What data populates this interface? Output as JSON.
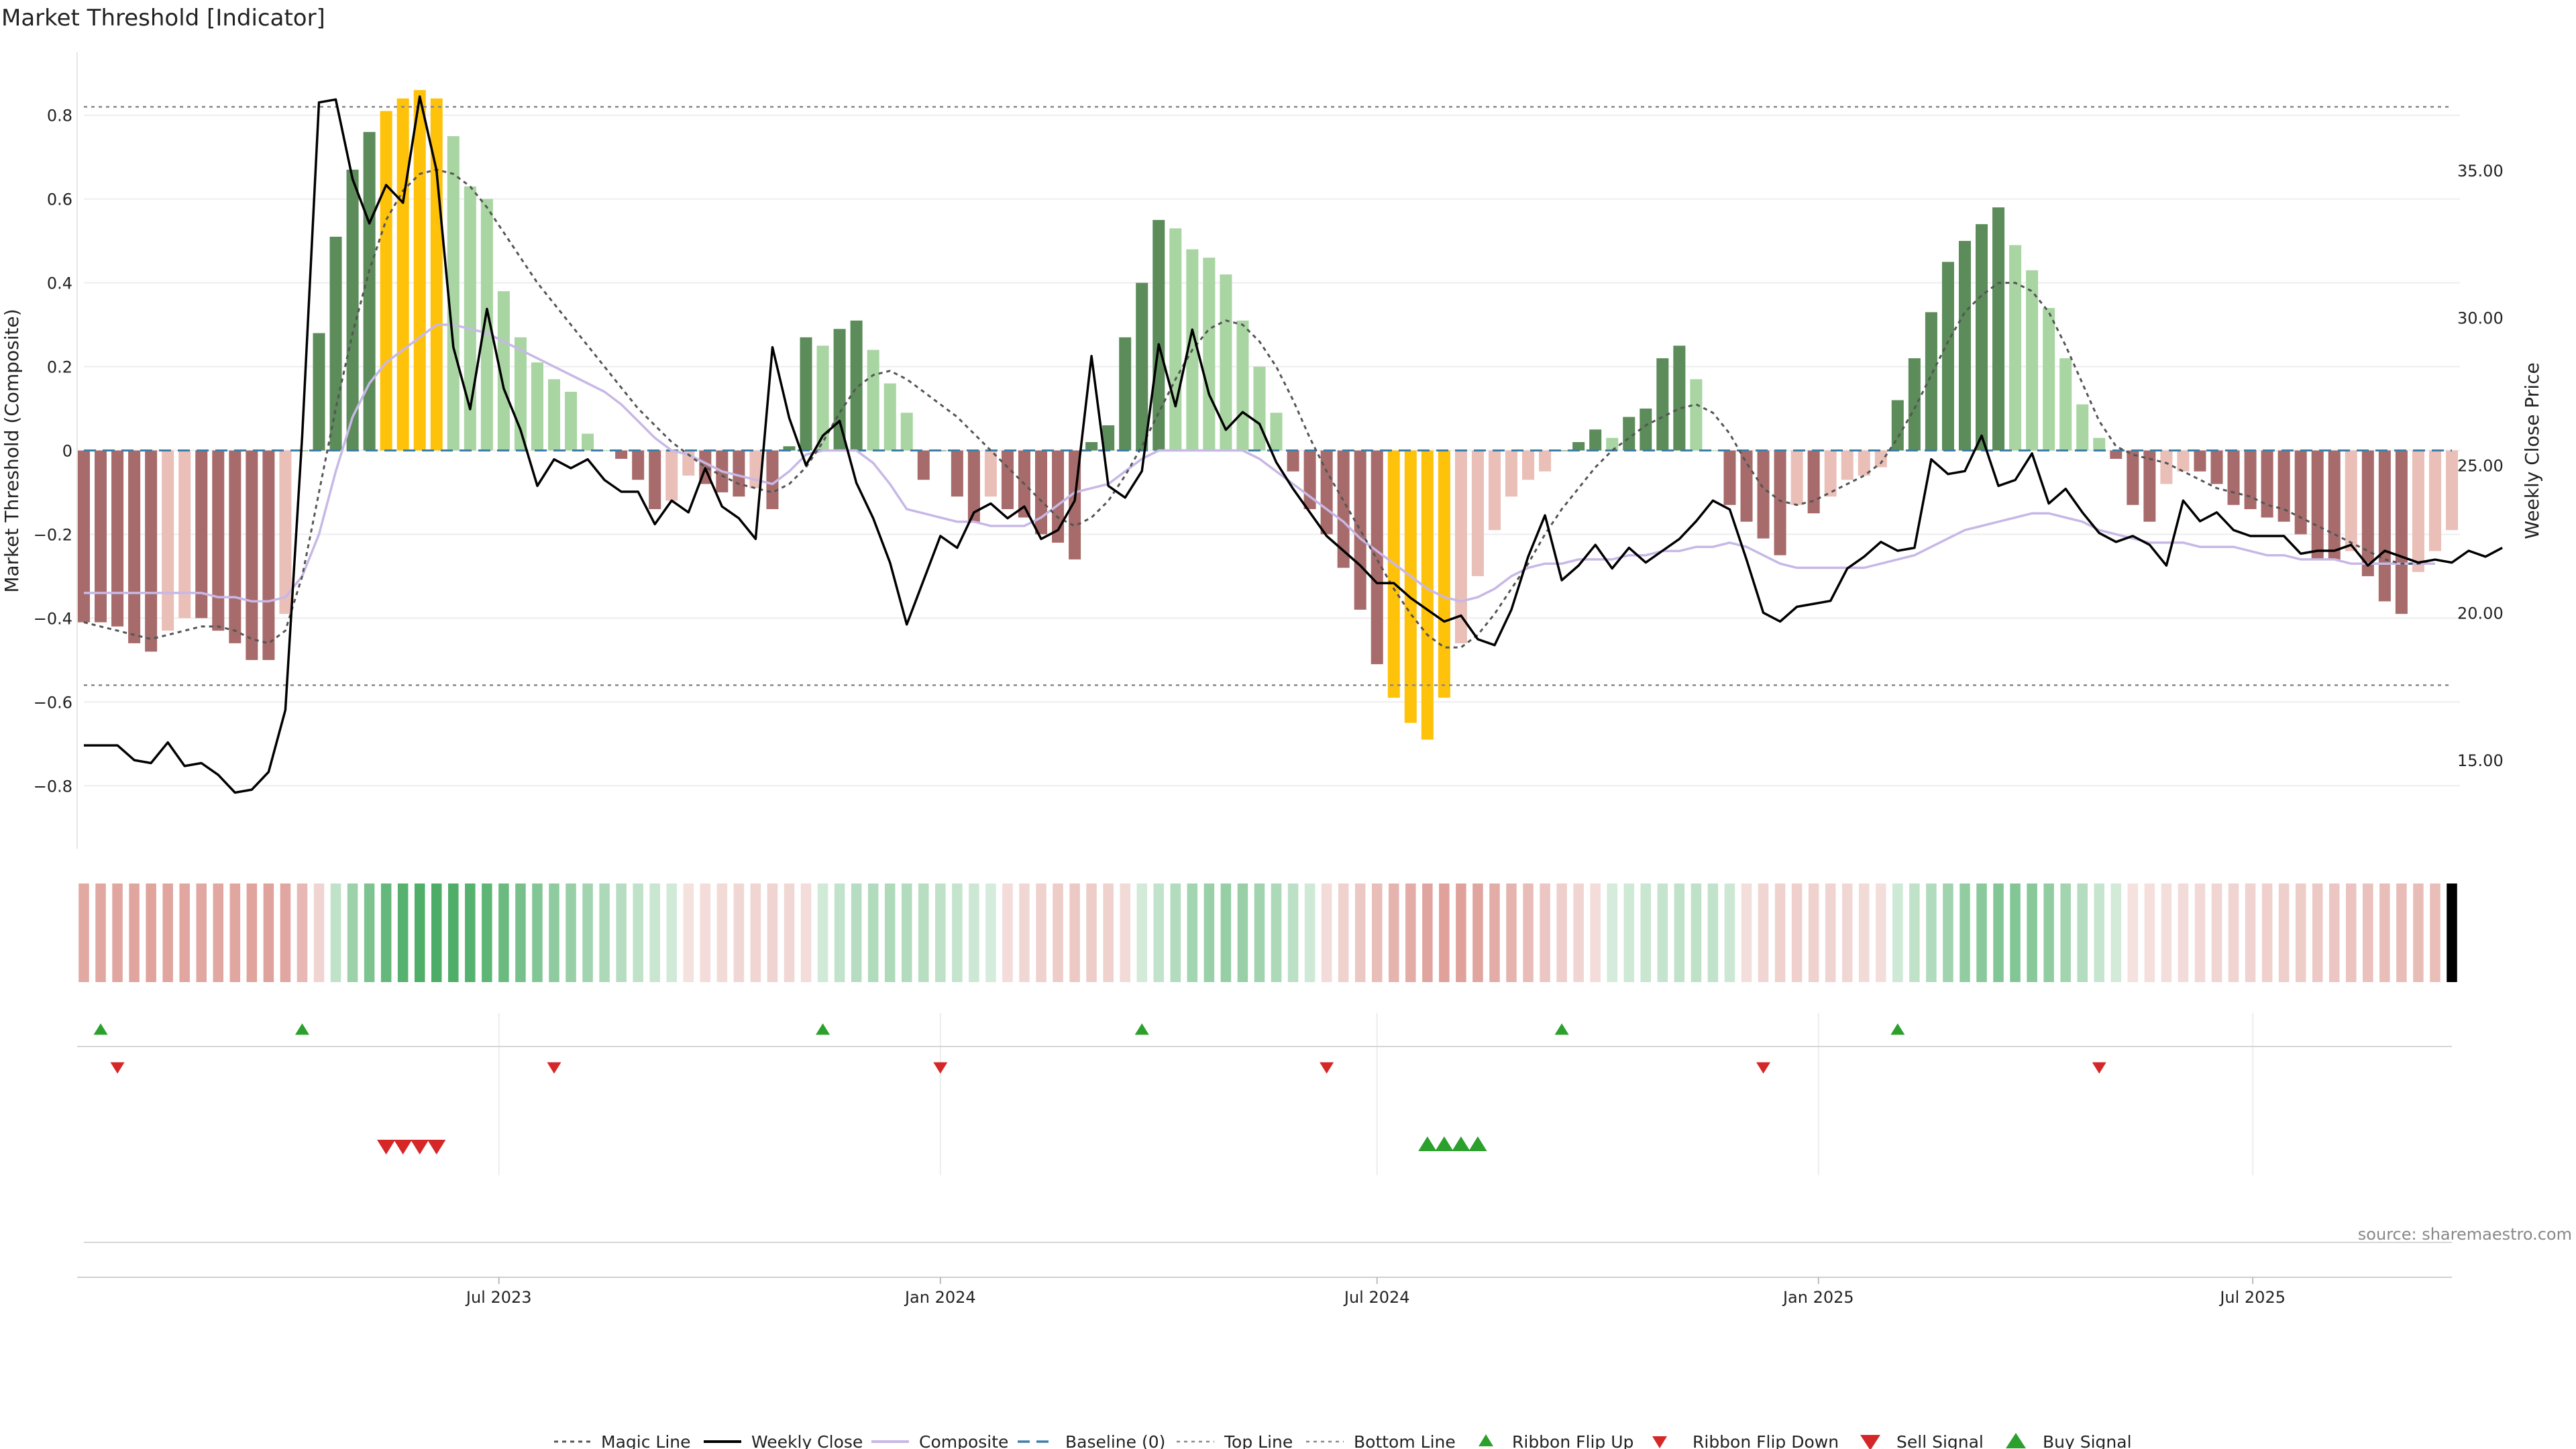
{
  "title": "Market Threshold [Indicator]",
  "source": "source: sharemaestro.com",
  "chart_data": {
    "type": "bar+line",
    "xlabel": "",
    "ylabel_left": "Market Threshold (Composite)",
    "ylabel_right": "Weekly Close Price",
    "ylim_left": [
      -0.95,
      0.95
    ],
    "ylim_right": [
      12.0,
      39.0
    ],
    "yticks_left": [
      "0.8",
      "0.6",
      "0.4",
      "0.2",
      "0",
      "−0.2",
      "−0.4",
      "−0.6",
      "−0.8"
    ],
    "yticks_left_values": [
      0.8,
      0.6,
      0.4,
      0.2,
      0,
      -0.2,
      -0.4,
      -0.6,
      -0.8
    ],
    "yticks_right": [
      "35.00",
      "30.00",
      "25.00",
      "20.00",
      "15.00"
    ],
    "yticks_right_values": [
      35,
      30,
      25,
      20,
      15
    ],
    "x_start": "2023-01-09",
    "week_step_days": 7,
    "top_line": 0.82,
    "bottom_line": -0.56,
    "date_ticks": [
      {
        "label": "Jul 2023",
        "date": "2023-07-01"
      },
      {
        "label": "Jan 2024",
        "date": "2024-01-01"
      },
      {
        "label": "Jul 2024",
        "date": "2024-07-01"
      },
      {
        "label": "Jan 2025",
        "date": "2025-01-01"
      },
      {
        "label": "Jul 2025",
        "date": "2025-07-01"
      }
    ],
    "composite_bars": [
      -0.41,
      -0.41,
      -0.42,
      -0.46,
      -0.48,
      -0.43,
      -0.4,
      -0.4,
      -0.43,
      -0.46,
      -0.5,
      -0.5,
      -0.39,
      0.0,
      0.28,
      0.51,
      0.67,
      0.76,
      0.81,
      0.84,
      0.86,
      0.84,
      0.75,
      0.63,
      0.6,
      0.38,
      0.27,
      0.21,
      0.17,
      0.14,
      0.04,
      0.0,
      -0.02,
      -0.07,
      -0.14,
      -0.12,
      -0.06,
      -0.08,
      -0.1,
      -0.11,
      -0.09,
      -0.14,
      0.01,
      0.27,
      0.25,
      0.29,
      0.31,
      0.24,
      0.16,
      0.09,
      -0.07,
      0.0,
      -0.11,
      -0.17,
      -0.11,
      -0.14,
      -0.16,
      -0.2,
      -0.22,
      -0.26,
      0.02,
      0.06,
      0.27,
      0.4,
      0.55,
      0.53,
      0.48,
      0.46,
      0.42,
      0.31,
      0.2,
      0.09,
      -0.05,
      -0.14,
      -0.2,
      -0.28,
      -0.38,
      -0.51,
      -0.59,
      -0.65,
      -0.69,
      -0.59,
      -0.46,
      -0.3,
      -0.19,
      -0.11,
      -0.07,
      -0.05,
      0.0,
      0.02,
      0.05,
      0.03,
      0.08,
      0.1,
      0.22,
      0.25,
      0.17,
      0.0,
      -0.13,
      -0.17,
      -0.21,
      -0.25,
      -0.13,
      -0.15,
      -0.11,
      -0.07,
      -0.06,
      -0.04,
      0.12,
      0.22,
      0.33,
      0.45,
      0.5,
      0.54,
      0.58,
      0.49,
      0.43,
      0.34,
      0.22,
      0.11,
      0.03,
      -0.02,
      -0.13,
      -0.17,
      -0.08,
      -0.05,
      -0.05,
      -0.08,
      -0.13,
      -0.14,
      -0.16,
      -0.17,
      -0.2,
      -0.26,
      -0.26,
      -0.24,
      -0.3,
      -0.36,
      -0.39,
      -0.29,
      -0.24,
      -0.19
    ],
    "weekly_close": [
      15.5,
      15.5,
      15.5,
      15.0,
      14.9,
      15.6,
      14.8,
      14.9,
      14.5,
      13.9,
      14.0,
      14.6,
      16.7,
      26.0,
      37.3,
      37.4,
      34.7,
      33.2,
      34.5,
      33.9,
      37.5,
      35.0,
      29.0,
      26.9,
      30.3,
      27.6,
      26.2,
      24.3,
      25.2,
      24.9,
      25.2,
      24.5,
      24.1,
      24.1,
      23.0,
      23.8,
      23.4,
      24.9,
      23.6,
      23.2,
      22.5,
      29.0,
      26.6,
      25.0,
      26.0,
      26.5,
      24.4,
      23.2,
      21.7,
      19.6,
      21.1,
      22.6,
      22.2,
      23.4,
      23.7,
      23.2,
      23.6,
      22.5,
      22.8,
      23.8,
      28.7,
      24.3,
      23.9,
      24.8,
      29.1,
      27.0,
      29.6,
      27.4,
      26.2,
      26.8,
      26.4,
      25.1,
      24.2,
      23.4,
      22.6,
      22.1,
      21.6,
      21.0,
      21.0,
      20.5,
      20.1,
      19.7,
      19.9,
      19.1,
      18.9,
      20.1,
      21.9,
      23.3,
      21.1,
      21.6,
      22.3,
      21.5,
      22.2,
      21.7,
      22.1,
      22.5,
      23.1,
      23.8,
      23.5,
      21.8,
      20.0,
      19.7,
      20.2,
      20.3,
      20.4,
      21.5,
      21.9,
      22.4,
      22.1,
      22.2,
      25.2,
      24.7,
      24.8,
      26.0,
      24.3,
      24.5,
      25.4,
      23.7,
      24.2,
      23.4,
      22.7,
      22.4,
      22.6,
      22.3,
      21.6,
      23.8,
      23.1,
      23.4,
      22.8,
      22.6,
      22.6,
      22.6,
      22.0,
      22.1,
      22.1,
      22.3,
      21.6,
      22.1,
      21.9,
      21.7,
      21.8,
      21.7,
      22.1,
      21.9,
      22.2
    ],
    "magic_line": [
      -0.41,
      -0.42,
      -0.43,
      -0.44,
      -0.45,
      -0.44,
      -0.43,
      -0.42,
      -0.42,
      -0.43,
      -0.45,
      -0.46,
      -0.43,
      -0.3,
      -0.1,
      0.1,
      0.28,
      0.43,
      0.55,
      0.62,
      0.66,
      0.67,
      0.66,
      0.63,
      0.58,
      0.52,
      0.46,
      0.4,
      0.35,
      0.3,
      0.25,
      0.2,
      0.15,
      0.1,
      0.06,
      0.02,
      -0.01,
      -0.04,
      -0.06,
      -0.08,
      -0.09,
      -0.1,
      -0.08,
      -0.04,
      0.02,
      0.09,
      0.15,
      0.18,
      0.19,
      0.17,
      0.14,
      0.11,
      0.08,
      0.04,
      0.0,
      -0.04,
      -0.08,
      -0.12,
      -0.16,
      -0.18,
      -0.16,
      -0.12,
      -0.06,
      0.01,
      0.09,
      0.17,
      0.24,
      0.29,
      0.31,
      0.3,
      0.26,
      0.2,
      0.12,
      0.03,
      -0.05,
      -0.12,
      -0.19,
      -0.26,
      -0.33,
      -0.39,
      -0.44,
      -0.47,
      -0.47,
      -0.44,
      -0.39,
      -0.33,
      -0.27,
      -0.2,
      -0.14,
      -0.09,
      -0.04,
      0.0,
      0.03,
      0.06,
      0.08,
      0.1,
      0.11,
      0.09,
      0.04,
      -0.03,
      -0.09,
      -0.12,
      -0.13,
      -0.12,
      -0.1,
      -0.08,
      -0.06,
      -0.03,
      0.03,
      0.1,
      0.18,
      0.26,
      0.33,
      0.37,
      0.4,
      0.4,
      0.38,
      0.33,
      0.25,
      0.16,
      0.07,
      0.01,
      -0.01,
      -0.02,
      -0.03,
      -0.05,
      -0.07,
      -0.09,
      -0.1,
      -0.11,
      -0.13,
      -0.14,
      -0.16,
      -0.18,
      -0.2,
      -0.22,
      -0.24,
      -0.26,
      -0.27,
      -0.27,
      -0.26
    ],
    "composite_line": [
      -0.34,
      -0.34,
      -0.34,
      -0.34,
      -0.34,
      -0.34,
      -0.34,
      -0.34,
      -0.35,
      -0.35,
      -0.36,
      -0.36,
      -0.35,
      -0.3,
      -0.2,
      -0.05,
      0.08,
      0.16,
      0.21,
      0.24,
      0.27,
      0.3,
      0.3,
      0.29,
      0.28,
      0.26,
      0.24,
      0.22,
      0.2,
      0.18,
      0.16,
      0.14,
      0.11,
      0.07,
      0.03,
      0.0,
      -0.01,
      -0.03,
      -0.05,
      -0.06,
      -0.07,
      -0.08,
      -0.05,
      -0.01,
      0.0,
      0.0,
      0.0,
      -0.03,
      -0.08,
      -0.14,
      -0.15,
      -0.16,
      -0.17,
      -0.17,
      -0.18,
      -0.18,
      -0.18,
      -0.16,
      -0.13,
      -0.1,
      -0.09,
      -0.08,
      -0.05,
      -0.02,
      0.0,
      0.0,
      0.0,
      0.0,
      0.0,
      0.0,
      -0.02,
      -0.05,
      -0.08,
      -0.11,
      -0.14,
      -0.17,
      -0.21,
      -0.24,
      -0.27,
      -0.3,
      -0.33,
      -0.35,
      -0.36,
      -0.35,
      -0.33,
      -0.3,
      -0.28,
      -0.27,
      -0.27,
      -0.26,
      -0.26,
      -0.26,
      -0.25,
      -0.25,
      -0.24,
      -0.24,
      -0.23,
      -0.23,
      -0.22,
      -0.23,
      -0.25,
      -0.27,
      -0.28,
      -0.28,
      -0.28,
      -0.28,
      -0.28,
      -0.27,
      -0.26,
      -0.25,
      -0.23,
      -0.21,
      -0.19,
      -0.18,
      -0.17,
      -0.16,
      -0.15,
      -0.15,
      -0.16,
      -0.17,
      -0.19,
      -0.2,
      -0.21,
      -0.22,
      -0.22,
      -0.22,
      -0.23,
      -0.23,
      -0.23,
      -0.24,
      -0.25,
      -0.25,
      -0.26,
      -0.26,
      -0.26,
      -0.27,
      -0.27,
      -0.27,
      -0.27,
      -0.27,
      -0.27
    ],
    "ribbon_flip_up_weeks": [
      1,
      13,
      44,
      63,
      88,
      108
    ],
    "ribbon_flip_down_weeks": [
      2,
      28,
      51,
      74,
      100,
      120
    ],
    "sell_signal_weeks": [
      18,
      19,
      20,
      21
    ],
    "buy_signal_weeks": [
      80,
      81,
      82,
      83
    ],
    "legend": [
      "Magic Line",
      "Weekly Close",
      "Composite",
      "Baseline (0)",
      "Top Line",
      "Bottom Line",
      "Ribbon Flip Up",
      "Ribbon Flip Down",
      "Sell Signal",
      "Buy Signal"
    ],
    "colors": {
      "strong_up": "#5b8c5a",
      "weak_up": "#a8d5a2",
      "strong_down": "#a86b6b",
      "weak_down": "#eabfb8",
      "extreme": "#ffc20a",
      "close": "#000000",
      "composite_line": "#c7b8e6",
      "magic": "#555555",
      "baseline": "#3d7ea6",
      "threshold_line": "#888888",
      "buy": "#2ca02c",
      "sell": "#d62728",
      "ribbon_green": "#3ea65a",
      "ribbon_red": "#d27b72"
    }
  }
}
